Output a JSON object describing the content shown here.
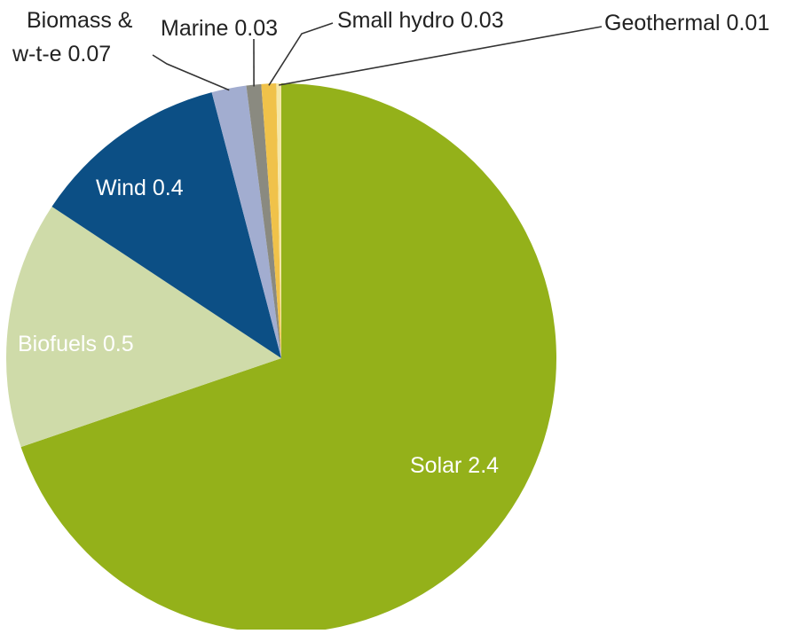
{
  "chart_data": {
    "type": "pie",
    "title": "",
    "start_angle_deg": 0,
    "direction": "clockwise",
    "slices": [
      {
        "label": "Solar 2.4",
        "name": "Solar",
        "value": 2.4,
        "color": "#94b11a",
        "label_style": "inside"
      },
      {
        "label": "Biofuels 0.5",
        "name": "Biofuels",
        "value": 0.5,
        "color": "#cfdba9",
        "label_style": "inside"
      },
      {
        "label": "Wind 0.4",
        "name": "Wind",
        "value": 0.4,
        "color": "#0c4f85",
        "label_style": "inside"
      },
      {
        "label_lines": [
          "Biomass &",
          "w-t-e 0.07"
        ],
        "name": "Biomass & w-t-e",
        "value": 0.07,
        "color": "#a2add0",
        "label_style": "leader"
      },
      {
        "label": "Marine 0.03",
        "name": "Marine",
        "value": 0.03,
        "color": "#8a8a80",
        "label_style": "leader"
      },
      {
        "label": "Small hydro 0.03",
        "name": "Small hydro",
        "value": 0.03,
        "color": "#f0c24a",
        "label_style": "leader"
      },
      {
        "label": "Geothermal 0.01",
        "name": "Geothermal",
        "value": 0.01,
        "color": "#f5e7a6",
        "label_style": "leader"
      }
    ]
  }
}
